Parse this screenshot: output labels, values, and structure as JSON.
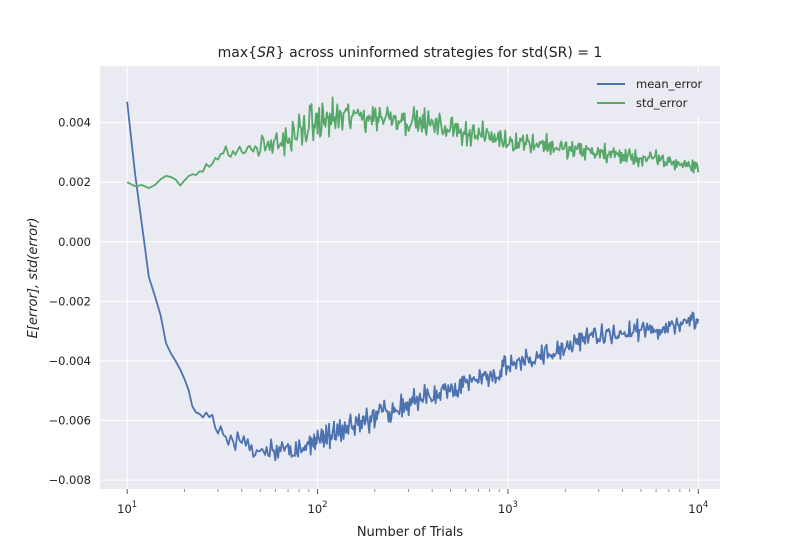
{
  "chart_data": {
    "type": "line",
    "title": {
      "prefix": "max",
      "math": "SR",
      "rest": " across uninformed strategies for std(SR) = 1"
    },
    "xlabel": "Number of Trials",
    "ylabel": "E[error], std(error)",
    "xscale": "log",
    "xlim": [
      7.2,
      13000
    ],
    "ylim": [
      -0.0083,
      0.0059
    ],
    "x_ticks": [
      {
        "value": 10,
        "base": "10",
        "exp": "1"
      },
      {
        "value": 100,
        "base": "10",
        "exp": "2"
      },
      {
        "value": 1000,
        "base": "10",
        "exp": "3"
      },
      {
        "value": 10000,
        "base": "10",
        "exp": "4"
      }
    ],
    "y_ticks": [
      {
        "value": 0.004,
        "label": "0.004"
      },
      {
        "value": 0.002,
        "label": "0.002"
      },
      {
        "value": 0.0,
        "label": "0.000"
      },
      {
        "value": -0.002,
        "label": "−0.002"
      },
      {
        "value": -0.004,
        "label": "−0.004"
      },
      {
        "value": -0.006,
        "label": "−0.006"
      },
      {
        "value": -0.008,
        "label": "−0.008"
      }
    ],
    "grid": true,
    "legend_position": "top-right",
    "style": {
      "background": "#eaeaf2",
      "grid": "#ffffff"
    },
    "series": [
      {
        "name": "mean_error",
        "color": "#4c72b0",
        "trend": [
          [
            10,
            0.0047
          ],
          [
            11,
            0.0023
          ],
          [
            12,
            0.0005
          ],
          [
            13,
            -0.0012
          ],
          [
            15,
            -0.0025
          ],
          [
            16,
            -0.0034
          ],
          [
            18,
            -0.004
          ],
          [
            20,
            -0.0046
          ],
          [
            22,
            -0.0055
          ],
          [
            25,
            -0.0058
          ],
          [
            28,
            -0.006
          ],
          [
            32,
            -0.0065
          ],
          [
            40,
            -0.0068
          ],
          [
            50,
            -0.007
          ],
          [
            60,
            -0.007
          ],
          [
            70,
            -0.007
          ],
          [
            85,
            -0.0069
          ],
          [
            100,
            -0.0066
          ],
          [
            130,
            -0.0063
          ],
          [
            180,
            -0.006
          ],
          [
            250,
            -0.0057
          ],
          [
            350,
            -0.0053
          ],
          [
            500,
            -0.005
          ],
          [
            700,
            -0.0046
          ],
          [
            1000,
            -0.0042
          ],
          [
            1500,
            -0.0038
          ],
          [
            2000,
            -0.0035
          ],
          [
            3000,
            -0.0032
          ],
          [
            5000,
            -0.003
          ],
          [
            7000,
            -0.0028
          ],
          [
            10000,
            -0.0026
          ]
        ],
        "noise": [
          [
            10,
            0.0
          ],
          [
            20,
            6e-05
          ],
          [
            30,
            0.00022
          ],
          [
            60,
            0.00028
          ],
          [
            100,
            0.0003
          ],
          [
            200,
            0.0003
          ],
          [
            1000,
            0.00028
          ],
          [
            10000,
            0.00025
          ]
        ]
      },
      {
        "name": "std_error",
        "color": "#55a868",
        "trend": [
          [
            10,
            0.002
          ],
          [
            11,
            0.00185
          ],
          [
            12,
            0.0019
          ],
          [
            13,
            0.0018
          ],
          [
            14,
            0.0019
          ],
          [
            15,
            0.0021
          ],
          [
            16,
            0.0022
          ],
          [
            18,
            0.0021
          ],
          [
            19,
            0.0019
          ],
          [
            21,
            0.0022
          ],
          [
            25,
            0.0025
          ],
          [
            30,
            0.0028
          ],
          [
            35,
            0.003
          ],
          [
            45,
            0.0031
          ],
          [
            60,
            0.0033
          ],
          [
            75,
            0.0035
          ],
          [
            90,
            0.0039
          ],
          [
            110,
            0.0041
          ],
          [
            150,
            0.0042
          ],
          [
            200,
            0.0042
          ],
          [
            250,
            0.0042
          ],
          [
            350,
            0.004
          ],
          [
            500,
            0.0038
          ],
          [
            700,
            0.0036
          ],
          [
            1000,
            0.0034
          ],
          [
            1500,
            0.0033
          ],
          [
            2000,
            0.0031
          ],
          [
            3000,
            0.003
          ],
          [
            5000,
            0.0028
          ],
          [
            7000,
            0.0027
          ],
          [
            10000,
            0.0025
          ]
        ],
        "noise": [
          [
            10,
            0.0
          ],
          [
            20,
            5e-05
          ],
          [
            30,
            0.00018
          ],
          [
            60,
            0.00025
          ],
          [
            80,
            0.00045
          ],
          [
            150,
            0.0004
          ],
          [
            300,
            0.0003
          ],
          [
            1000,
            0.00025
          ],
          [
            10000,
            0.00018
          ]
        ]
      }
    ]
  }
}
